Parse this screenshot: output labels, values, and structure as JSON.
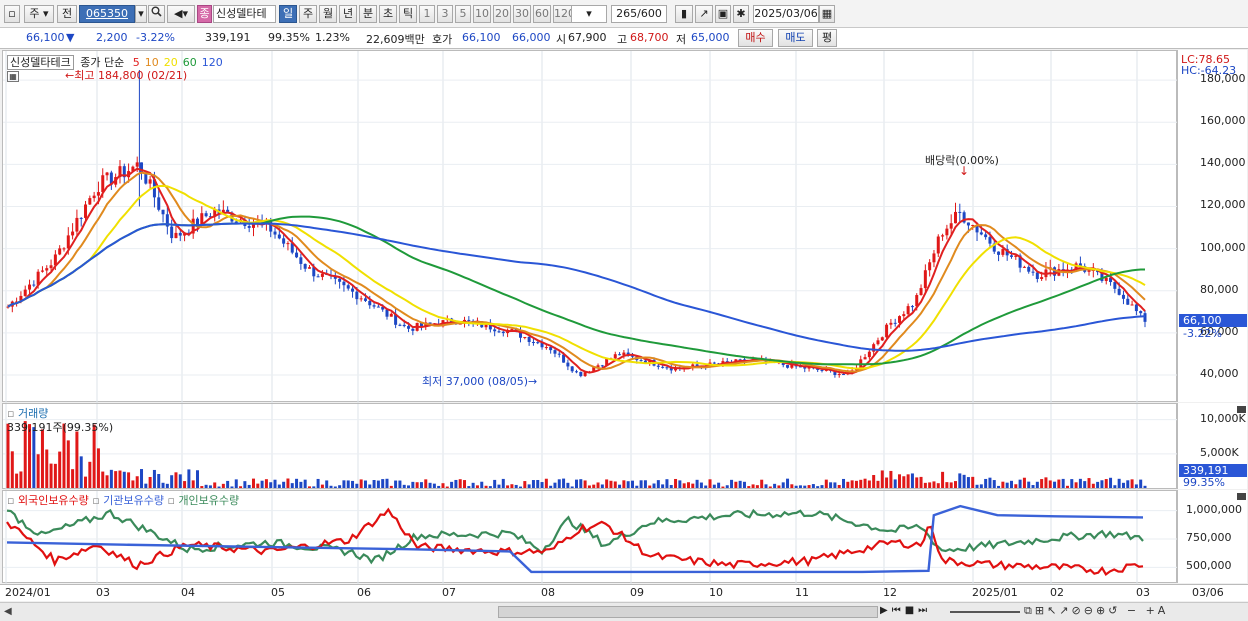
{
  "toolbar": {
    "market_sel": "주",
    "prev_label": "전",
    "stock_code": "065350",
    "stock_badge": "종",
    "stock_name": "신성델타테",
    "periods": [
      "일",
      "주",
      "월",
      "년",
      "분",
      "초",
      "틱"
    ],
    "active_period": "일",
    "intervals": [
      "1",
      "3",
      "5",
      "10",
      "20",
      "30",
      "60",
      "120"
    ],
    "count_value": "265",
    "count_total": "/600",
    "date": "2025/03/06"
  },
  "infobar": {
    "price": "66,100",
    "change_arrow": "▼",
    "change": "2,200",
    "change_pct": "-3.22%",
    "volume": "339,191",
    "vol_ratio": "99.35%",
    "turnover_pct": "1.23%",
    "amount": "22,609백만",
    "ask_label": "호가",
    "ask1": "66,100",
    "ask2": "66,000",
    "open_label": "시",
    "open": "67,900",
    "high_label": "고",
    "high": "68,700",
    "low_label": "저",
    "low": "65,000",
    "buy_label": "매수",
    "sell_label": "매도",
    "eval_label": "평"
  },
  "price_panel": {
    "stock_label": "신성델타테크",
    "legend_prefix": "종가 단순",
    "ma_periods": [
      "5",
      "10",
      "20",
      "60",
      "120"
    ],
    "ma_colors": [
      "#e02020",
      "#e08a1e",
      "#f0e000",
      "#1f9a3a",
      "#2a56d6"
    ],
    "high_marker": "최고 184,800 (02/21)",
    "low_marker": "최저 37,000 (08/05)",
    "dividend_marker": "배당락(0.00%)",
    "lc_label": "LC:78.65",
    "hc_label": "HC:-64.23",
    "y_ticks": [
      "180,000",
      "160,000",
      "140,000",
      "120,000",
      "100,000",
      "80,000",
      "60,000",
      "40,000"
    ],
    "price_tag": "66,100",
    "pct_tag": "-3.22%"
  },
  "volume_panel": {
    "title": "거래량",
    "summary": "339,191주(99.35%)",
    "y_ticks": [
      "10,000K",
      "5,000K"
    ],
    "vol_tag": "339,191",
    "vol_pct_tag": "99.35%"
  },
  "holdings_panel": {
    "series_names": [
      "외국인보유수량",
      "기관보유수량",
      "개인보유수량"
    ],
    "series_colors": [
      "#e01010",
      "#3a62d8",
      "#3a8a5a"
    ],
    "y_ticks": [
      "1,000,000",
      "750,000",
      "500,000"
    ]
  },
  "x_axis": [
    "2024/01",
    "03",
    "04",
    "05",
    "06",
    "07",
    "08",
    "09",
    "10",
    "11",
    "12",
    "2025/01",
    "02",
    "03",
    "03/06"
  ],
  "chart_data": {
    "type": "candlestick",
    "stock": "신성델타테크",
    "period": "daily",
    "x_range": [
      "2024/01",
      "2025/03/06"
    ],
    "price_ylim": [
      30000,
      190000
    ],
    "approx_close_points": [
      {
        "date": "2024/01/02",
        "close": 72000
      },
      {
        "date": "2024/01/20",
        "close": 95000
      },
      {
        "date": "2024/02/05",
        "close": 130000
      },
      {
        "date": "2024/02/21",
        "close": 140000
      },
      {
        "date": "2024/03/05",
        "close": 105000
      },
      {
        "date": "2024/03/20",
        "close": 118000
      },
      {
        "date": "2024/04/10",
        "close": 110000
      },
      {
        "date": "2024/04/25",
        "close": 90000
      },
      {
        "date": "2024/05/15",
        "close": 77000
      },
      {
        "date": "2024/06/01",
        "close": 62000
      },
      {
        "date": "2024/06/20",
        "close": 66000
      },
      {
        "date": "2024/07/10",
        "close": 61000
      },
      {
        "date": "2024/07/25",
        "close": 53000
      },
      {
        "date": "2024/08/05",
        "close": 40000
      },
      {
        "date": "2024/08/20",
        "close": 50000
      },
      {
        "date": "2024/09/10",
        "close": 43000
      },
      {
        "date": "2024/10/10",
        "close": 47000
      },
      {
        "date": "2024/11/05",
        "close": 42000
      },
      {
        "date": "2024/11/15",
        "close": 40000
      },
      {
        "date": "2024/12/01",
        "close": 65000
      },
      {
        "date": "2024/12/10",
        "close": 75000
      },
      {
        "date": "2024/12/20",
        "close": 108000
      },
      {
        "date": "2024/12/27",
        "close": 117000
      },
      {
        "date": "2025/01/10",
        "close": 100000
      },
      {
        "date": "2025/01/25",
        "close": 88000
      },
      {
        "date": "2025/02/10",
        "close": 92000
      },
      {
        "date": "2025/02/25",
        "close": 80000
      },
      {
        "date": "2025/03/06",
        "close": 66100
      }
    ],
    "holdings": {
      "foreign": "red series, ~500,000–1,000,000",
      "institution": "blue series, ~450,000–1,050,000",
      "individual": "green series, ~500,000–1,000,000"
    }
  }
}
